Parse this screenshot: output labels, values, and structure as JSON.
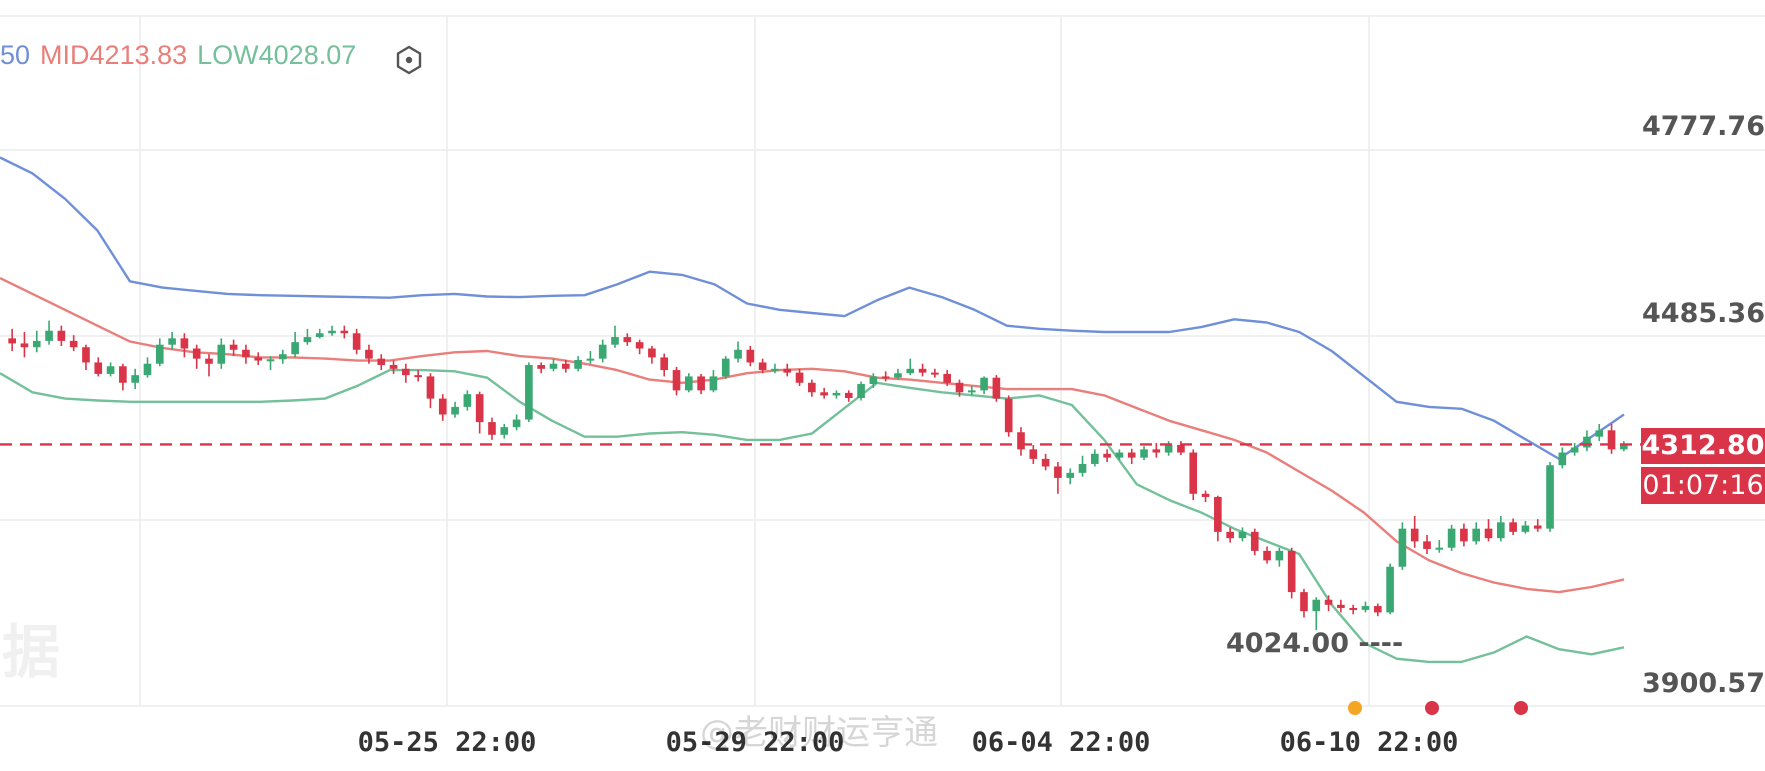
{
  "legend": {
    "up_partial": "50",
    "mid": "MID4213.83",
    "low": "LOW4028.07",
    "colors": {
      "up": "#6f8fd8",
      "mid": "#e97e7a",
      "low": "#74c09a"
    }
  },
  "axis": {
    "price_labels": [
      "4777.76",
      "4485.36",
      "3900.57"
    ],
    "time_labels": [
      "05-25 22:00",
      "05-29 22:00",
      "06-04 22:00",
      "06-10 22:00"
    ]
  },
  "current": {
    "price": "4312.80",
    "countdown": "01:07:16",
    "color": "#d93447"
  },
  "annotations": {
    "low_marker": "4024.00 ----"
  },
  "watermark": {
    "text": "@老财财运亨通",
    "left_fragment": "据"
  },
  "chart_data": {
    "type": "candlestick",
    "y_ticks": [
      4777.76,
      4485.36,
      3900.57
    ],
    "ylim": [
      3880,
      4900
    ],
    "x_ticks": [
      "05-25 22:00",
      "05-29 22:00",
      "06-04 22:00",
      "06-10 22:00"
    ],
    "current_price": 4312.8,
    "marked_low": 4024.0,
    "colors": {
      "bull": "#3aa872",
      "bear": "#d93447",
      "grid": "#ececec",
      "dash": "#d93447"
    },
    "bands": {
      "upper": [
        4765,
        4740,
        4700,
        4650,
        4570,
        4560,
        4555,
        4550,
        4548,
        4547,
        4546,
        4545,
        4544,
        4548,
        4550,
        4546,
        4545,
        4547,
        4548,
        4565,
        4585,
        4580,
        4565,
        4535,
        4525,
        4520,
        4515,
        4540,
        4560,
        4545,
        4525,
        4500,
        4495,
        4492,
        4490,
        4490,
        4490,
        4498,
        4510,
        4505,
        4490,
        4460,
        4420,
        4380,
        4372,
        4369,
        4350,
        4320,
        4290,
        4325,
        4360
      ],
      "mid": [
        4575,
        4550,
        4525,
        4500,
        4475,
        4465,
        4458,
        4455,
        4450,
        4450,
        4448,
        4445,
        4445,
        4452,
        4458,
        4460,
        4452,
        4448,
        4440,
        4430,
        4415,
        4410,
        4415,
        4425,
        4430,
        4432,
        4428,
        4418,
        4415,
        4410,
        4405,
        4400,
        4400,
        4400,
        4390,
        4370,
        4350,
        4335,
        4320,
        4300,
        4270,
        4240,
        4205,
        4160,
        4130,
        4110,
        4095,
        4085,
        4080,
        4088,
        4100
      ],
      "lower": [
        4425,
        4395,
        4385,
        4382,
        4380,
        4380,
        4380,
        4380,
        4380,
        4382,
        4385,
        4405,
        4430,
        4430,
        4428,
        4418,
        4380,
        4350,
        4325,
        4325,
        4330,
        4332,
        4328,
        4320,
        4320,
        4330,
        4370,
        4410,
        4402,
        4395,
        4390,
        4385,
        4390,
        4375,
        4320,
        4250,
        4225,
        4205,
        4180,
        4160,
        4140,
        4060,
        4000,
        3975,
        3970,
        3970,
        3985,
        4010,
        3990,
        3982,
        3993
      ]
    },
    "candles": [
      [
        4480,
        4472,
        4495,
        4460
      ],
      [
        4472,
        4466,
        4490,
        4450
      ],
      [
        4466,
        4476,
        4492,
        4458
      ],
      [
        4476,
        4492,
        4508,
        4470
      ],
      [
        4492,
        4476,
        4500,
        4468
      ],
      [
        4476,
        4466,
        4485,
        4460
      ],
      [
        4466,
        4442,
        4470,
        4430
      ],
      [
        4442,
        4424,
        4450,
        4420
      ],
      [
        4424,
        4436,
        4442,
        4420
      ],
      [
        4436,
        4410,
        4440,
        4398
      ],
      [
        4410,
        4422,
        4432,
        4400
      ],
      [
        4422,
        4440,
        4450,
        4418
      ],
      [
        4440,
        4470,
        4480,
        4436
      ],
      [
        4470,
        4480,
        4490,
        4462
      ],
      [
        4480,
        4464,
        4488,
        4450
      ],
      [
        4464,
        4448,
        4470,
        4432
      ],
      [
        4448,
        4440,
        4455,
        4420
      ],
      [
        4440,
        4470,
        4480,
        4432
      ],
      [
        4470,
        4462,
        4478,
        4452
      ],
      [
        4462,
        4450,
        4470,
        4440
      ],
      [
        4450,
        4445,
        4458,
        4438
      ],
      [
        4445,
        4447,
        4452,
        4430
      ],
      [
        4447,
        4455,
        4462,
        4440
      ],
      [
        4455,
        4474,
        4490,
        4450
      ],
      [
        4474,
        4482,
        4495,
        4470
      ],
      [
        4482,
        4488,
        4495,
        4480
      ],
      [
        4488,
        4492,
        4500,
        4484
      ],
      [
        4492,
        4488,
        4500,
        4480
      ],
      [
        4488,
        4462,
        4495,
        4455
      ],
      [
        4462,
        4448,
        4470,
        4440
      ],
      [
        4448,
        4438,
        4455,
        4430
      ],
      [
        4438,
        4432,
        4445,
        4424
      ],
      [
        4432,
        4422,
        4440,
        4410
      ],
      [
        4422,
        4420,
        4430,
        4412
      ],
      [
        4420,
        4385,
        4425,
        4370
      ],
      [
        4385,
        4360,
        4392,
        4350
      ],
      [
        4360,
        4372,
        4380,
        4355
      ],
      [
        4372,
        4392,
        4398,
        4366
      ],
      [
        4392,
        4348,
        4396,
        4330
      ],
      [
        4348,
        4328,
        4355,
        4320
      ],
      [
        4328,
        4340,
        4345,
        4322
      ],
      [
        4340,
        4352,
        4360,
        4335
      ],
      [
        4352,
        4438,
        4442,
        4348
      ],
      [
        4438,
        4432,
        4442,
        4425
      ],
      [
        4432,
        4440,
        4448,
        4428
      ],
      [
        4440,
        4432,
        4446,
        4426
      ],
      [
        4432,
        4446,
        4452,
        4428
      ],
      [
        4446,
        4448,
        4460,
        4440
      ],
      [
        4448,
        4470,
        4478,
        4442
      ],
      [
        4470,
        4482,
        4500,
        4465
      ],
      [
        4482,
        4474,
        4488,
        4468
      ],
      [
        4474,
        4464,
        4478,
        4455
      ],
      [
        4464,
        4450,
        4468,
        4440
      ],
      [
        4450,
        4430,
        4456,
        4420
      ],
      [
        4430,
        4398,
        4435,
        4390
      ],
      [
        4398,
        4420,
        4425,
        4395
      ],
      [
        4420,
        4398,
        4424,
        4392
      ],
      [
        4398,
        4420,
        4430,
        4395
      ],
      [
        4420,
        4448,
        4452,
        4416
      ],
      [
        4448,
        4462,
        4475,
        4442
      ],
      [
        4462,
        4442,
        4468,
        4436
      ],
      [
        4442,
        4430,
        4448,
        4425
      ],
      [
        4430,
        4432,
        4440,
        4425
      ],
      [
        4432,
        4426,
        4440,
        4420
      ],
      [
        4426,
        4410,
        4432,
        4405
      ],
      [
        4410,
        4395,
        4415,
        4388
      ],
      [
        4395,
        4390,
        4402,
        4385
      ],
      [
        4390,
        4394,
        4398,
        4385
      ],
      [
        4394,
        4386,
        4398,
        4380
      ],
      [
        4386,
        4408,
        4412,
        4382
      ],
      [
        4408,
        4420,
        4425,
        4402
      ],
      [
        4420,
        4418,
        4428,
        4412
      ],
      [
        4418,
        4425,
        4432,
        4415
      ],
      [
        4425,
        4432,
        4448,
        4422
      ],
      [
        4432,
        4426,
        4440,
        4420
      ],
      [
        4426,
        4424,
        4432,
        4418
      ],
      [
        4424,
        4410,
        4430,
        4405
      ],
      [
        4410,
        4395,
        4415,
        4388
      ],
      [
        4395,
        4398,
        4405,
        4390
      ],
      [
        4398,
        4418,
        4420,
        4392
      ],
      [
        4418,
        4385,
        4422,
        4380
      ],
      [
        4385,
        4332,
        4390,
        4325
      ],
      [
        4332,
        4305,
        4340,
        4295
      ],
      [
        4305,
        4290,
        4312,
        4282
      ],
      [
        4290,
        4278,
        4298,
        4272
      ],
      [
        4278,
        4260,
        4285,
        4235
      ],
      [
        4260,
        4268,
        4275,
        4250
      ],
      [
        4268,
        4282,
        4295,
        4262
      ],
      [
        4282,
        4298,
        4305,
        4278
      ],
      [
        4298,
        4292,
        4305,
        4285
      ],
      [
        4292,
        4300,
        4305,
        4288
      ],
      [
        4300,
        4292,
        4306,
        4282
      ],
      [
        4292,
        4305,
        4310,
        4288
      ],
      [
        4305,
        4300,
        4315,
        4292
      ],
      [
        4300,
        4312,
        4318,
        4295
      ],
      [
        4312,
        4300,
        4318,
        4296
      ],
      [
        4300,
        4235,
        4305,
        4225
      ],
      [
        4235,
        4230,
        4240,
        4222
      ],
      [
        4230,
        4175,
        4232,
        4160
      ],
      [
        4175,
        4165,
        4182,
        4158
      ],
      [
        4165,
        4175,
        4182,
        4160
      ],
      [
        4175,
        4145,
        4180,
        4138
      ],
      [
        4145,
        4130,
        4152,
        4125
      ],
      [
        4130,
        4145,
        4150,
        4120
      ],
      [
        4145,
        4080,
        4150,
        4070
      ],
      [
        4080,
        4050,
        4085,
        4040
      ],
      [
        4050,
        4068,
        4072,
        4020
      ],
      [
        4068,
        4060,
        4075,
        4050
      ],
      [
        4060,
        4055,
        4068,
        4048
      ],
      [
        4055,
        4052,
        4060,
        4045
      ],
      [
        4052,
        4058,
        4065,
        4048
      ],
      [
        4058,
        4048,
        4062,
        4042
      ],
      [
        4048,
        4120,
        4125,
        4045
      ],
      [
        4120,
        4180,
        4190,
        4115
      ],
      [
        4180,
        4160,
        4200,
        4150
      ],
      [
        4160,
        4148,
        4170,
        4140
      ],
      [
        4148,
        4150,
        4162,
        4142
      ],
      [
        4150,
        4180,
        4186,
        4145
      ],
      [
        4180,
        4160,
        4188,
        4152
      ],
      [
        4160,
        4180,
        4190,
        4155
      ],
      [
        4180,
        4165,
        4195,
        4160
      ],
      [
        4165,
        4190,
        4200,
        4160
      ],
      [
        4190,
        4175,
        4196,
        4170
      ],
      [
        4175,
        4185,
        4192,
        4172
      ],
      [
        4185,
        4180,
        4195,
        4175
      ],
      [
        4180,
        4280,
        4285,
        4175
      ],
      [
        4280,
        4300,
        4308,
        4275
      ],
      [
        4300,
        4308,
        4315,
        4295
      ],
      [
        4308,
        4325,
        4335,
        4302
      ],
      [
        4325,
        4335,
        4345,
        4318
      ],
      [
        4335,
        4305,
        4345,
        4298
      ],
      [
        4305,
        4312,
        4318,
        4302
      ]
    ]
  }
}
